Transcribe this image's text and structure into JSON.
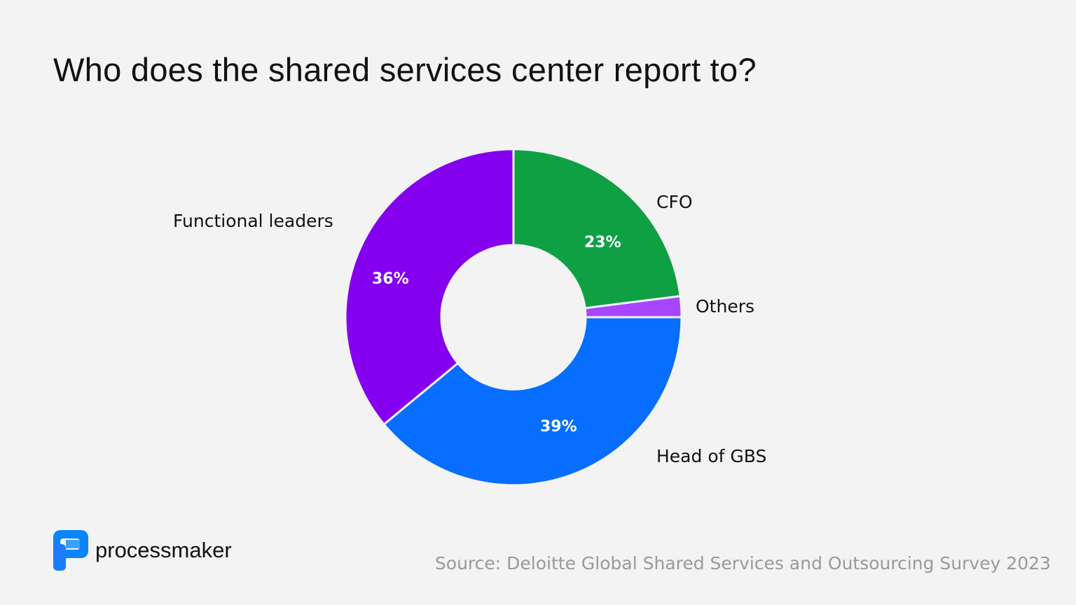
{
  "chart_data": {
    "type": "pie",
    "donut": true,
    "title": "Who does the shared services center report to?",
    "slices": [
      {
        "label": "CFO",
        "value": 23,
        "display": "23%",
        "color": "#0ea043"
      },
      {
        "label": "Others",
        "value": 2,
        "display": "",
        "color": "#a745ff"
      },
      {
        "label": "Head of GBS",
        "value": 39,
        "display": "39%",
        "color": "#076eff"
      },
      {
        "label": "Functional leaders",
        "value": 36,
        "display": "36%",
        "color": "#8400ee"
      }
    ]
  },
  "source": "Source: Deloitte Global Shared Services and Outsourcing Survey 2023",
  "logo": {
    "text": "processmaker",
    "color": "#0a84ff"
  },
  "background": "#f3f3f3"
}
